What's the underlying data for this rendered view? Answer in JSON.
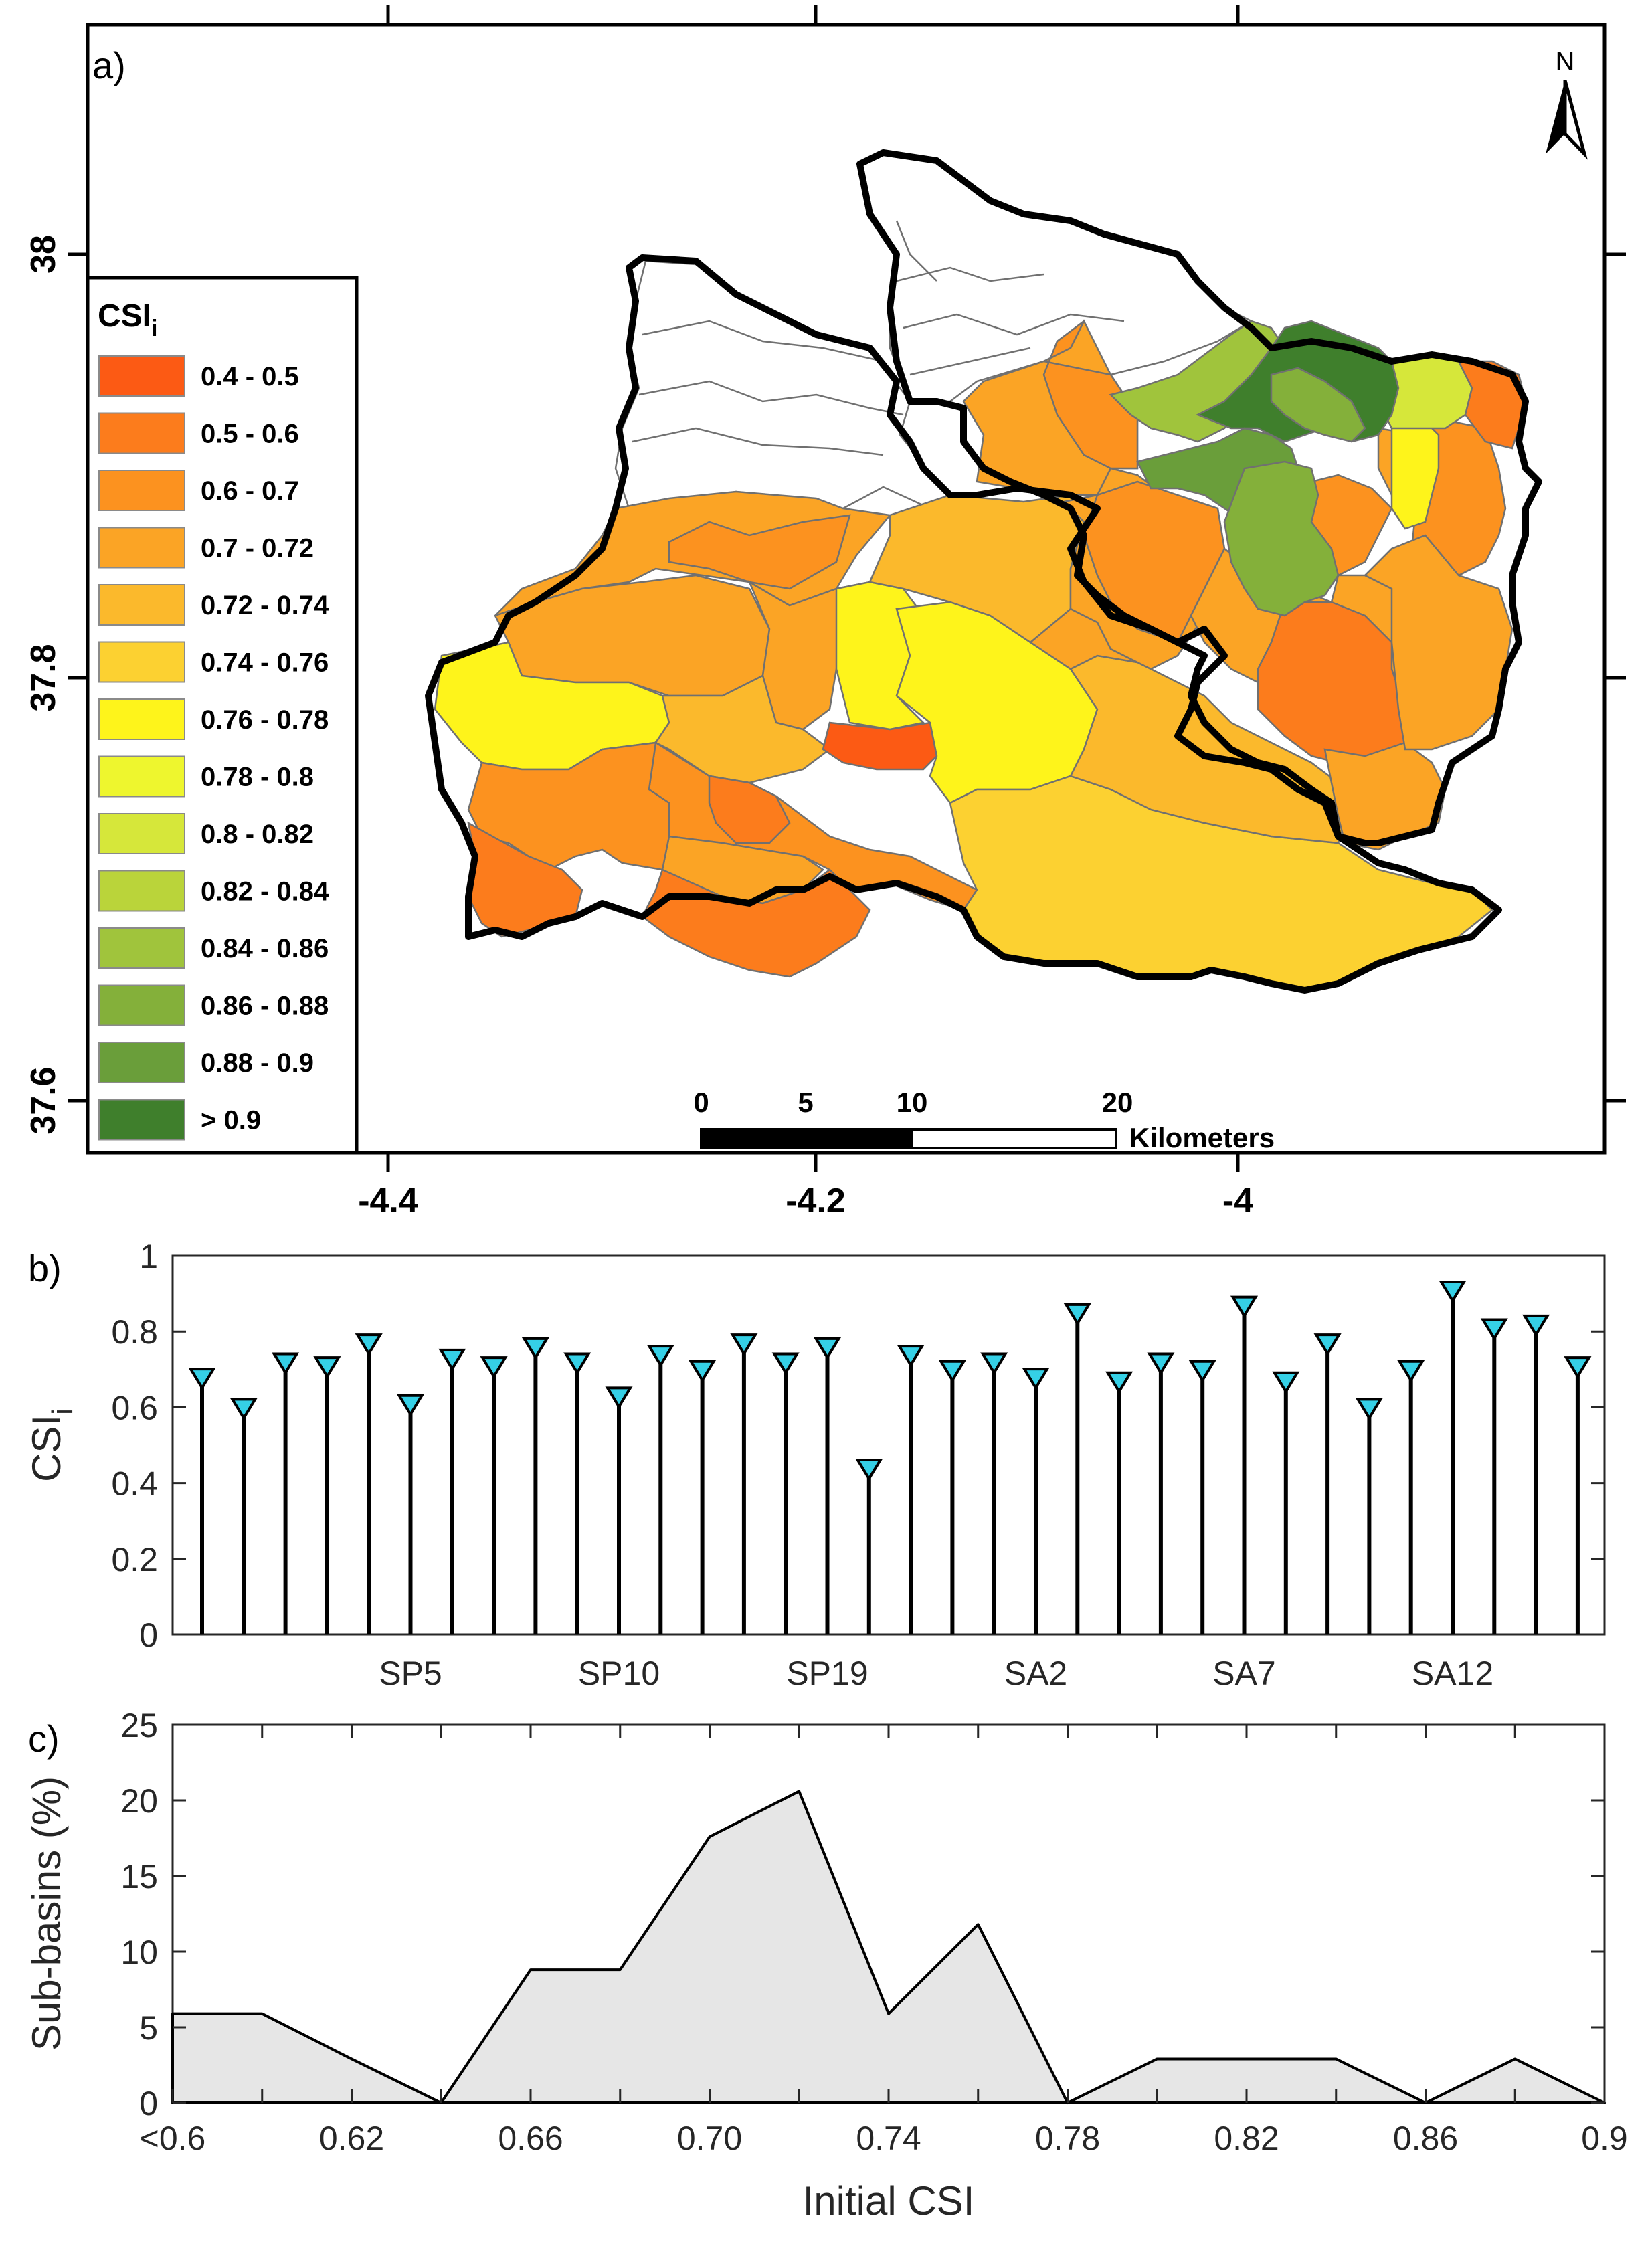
{
  "colors": {
    "legend_swatches": [
      "#fc5a14",
      "#fc7c1c",
      "#fc921f",
      "#fba425",
      "#fbb92c",
      "#fcd131",
      "#fef41b",
      "#eef62e",
      "#d6e73a",
      "#bad43a",
      "#a0c43c",
      "#84b03a",
      "#6a9e3a",
      "#3f7f2c"
    ],
    "stem_marker": "#35d0e6",
    "area_fill": "#e6e6e6"
  },
  "panel_a": {
    "label": "a)",
    "legend_title": "CSI",
    "legend_title_sub": "i",
    "legend_items": [
      "0.4 - 0.5",
      "0.5 - 0.6",
      "0.6 - 0.7",
      "0.7 - 0.72",
      "0.72 - 0.74",
      "0.74 - 0.76",
      "0.76 - 0.78",
      "0.78 - 0.8",
      "0.8 - 0.82",
      "0.82 - 0.84",
      "0.84 - 0.86",
      "0.86 - 0.88",
      "0.88 - 0.9",
      "> 0.9"
    ],
    "north_label": "N",
    "scale_ticks": [
      "0",
      "5",
      "10",
      "20"
    ],
    "scale_unit": "Kilometers",
    "y_ticks": [
      "38",
      "37.8",
      "37.6"
    ],
    "x_ticks": [
      "-4.4",
      "-4.2",
      "-4"
    ]
  },
  "chart_data": [
    {
      "type": "stem",
      "panel": "b)",
      "ylabel": "CSI",
      "ylabel_sub": "i",
      "ylim": [
        0,
        1
      ],
      "yticks": [
        "0",
        "0.2",
        "0.4",
        "0.6",
        "0.8",
        "1"
      ],
      "xtick_labels": [
        "SP5",
        "SP10",
        "SP19",
        "SA2",
        "SA7",
        "SA12"
      ],
      "values": [
        0.68,
        0.6,
        0.72,
        0.71,
        0.77,
        0.61,
        0.73,
        0.71,
        0.76,
        0.72,
        0.63,
        0.74,
        0.7,
        0.77,
        0.72,
        0.76,
        0.44,
        0.74,
        0.7,
        0.72,
        0.68,
        0.85,
        0.67,
        0.72,
        0.7,
        0.87,
        0.67,
        0.77,
        0.6,
        0.7,
        0.91,
        0.81,
        0.82,
        0.71
      ]
    },
    {
      "type": "area",
      "panel": "c)",
      "xlabel": "Initial CSI",
      "ylabel": "Sub-basins (%)",
      "xlim": [
        0.58,
        0.9
      ],
      "ylim": [
        0,
        25
      ],
      "xticks": [
        "<0.6",
        "0.62",
        "0.66",
        "0.70",
        "0.74",
        "0.78",
        "0.82",
        "0.86",
        "0.9"
      ],
      "yticks": [
        "0",
        "5",
        "10",
        "15",
        "20",
        "25"
      ],
      "x": [
        0.58,
        0.6,
        0.62,
        0.64,
        0.66,
        0.68,
        0.7,
        0.72,
        0.74,
        0.76,
        0.78,
        0.8,
        0.82,
        0.84,
        0.86,
        0.88,
        0.9
      ],
      "y": [
        5.9,
        5.9,
        2.9,
        0,
        8.8,
        8.8,
        17.6,
        20.6,
        5.9,
        11.8,
        0,
        2.9,
        2.9,
        2.9,
        0,
        2.9,
        0
      ]
    }
  ]
}
